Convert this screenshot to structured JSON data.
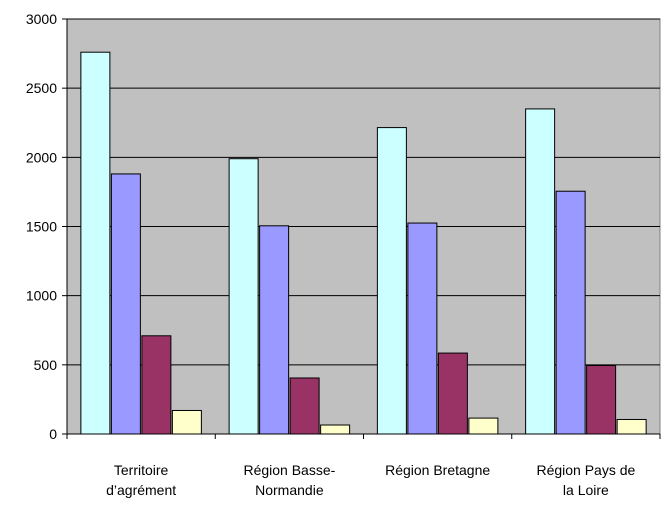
{
  "chart_data": {
    "type": "bar",
    "categories": [
      "Territoire d’agrément",
      "Région Basse-Normandie",
      "Région Bretagne",
      "Région Pays de la Loire"
    ],
    "category_label_lines": [
      [
        "Territoire",
        "d’agrément"
      ],
      [
        "Région Basse-",
        "Normandie"
      ],
      [
        "Région Bretagne"
      ],
      [
        "Région Pays de",
        "la Loire"
      ]
    ],
    "series": [
      {
        "values": [
          2760,
          1990,
          2215,
          2350
        ],
        "color": "#ccffff"
      },
      {
        "values": [
          1880,
          1505,
          1525,
          1755
        ],
        "color": "#9999ff"
      },
      {
        "values": [
          710,
          405,
          585,
          495
        ],
        "color": "#993366"
      },
      {
        "values": [
          170,
          65,
          115,
          105
        ],
        "color": "#ffffcc"
      }
    ],
    "ylim": [
      0,
      3000
    ],
    "yticks": [
      0,
      500,
      1000,
      1500,
      2000,
      2500,
      3000
    ],
    "grid": true,
    "plot_background": "#c0c0c0",
    "legend": "none"
  }
}
